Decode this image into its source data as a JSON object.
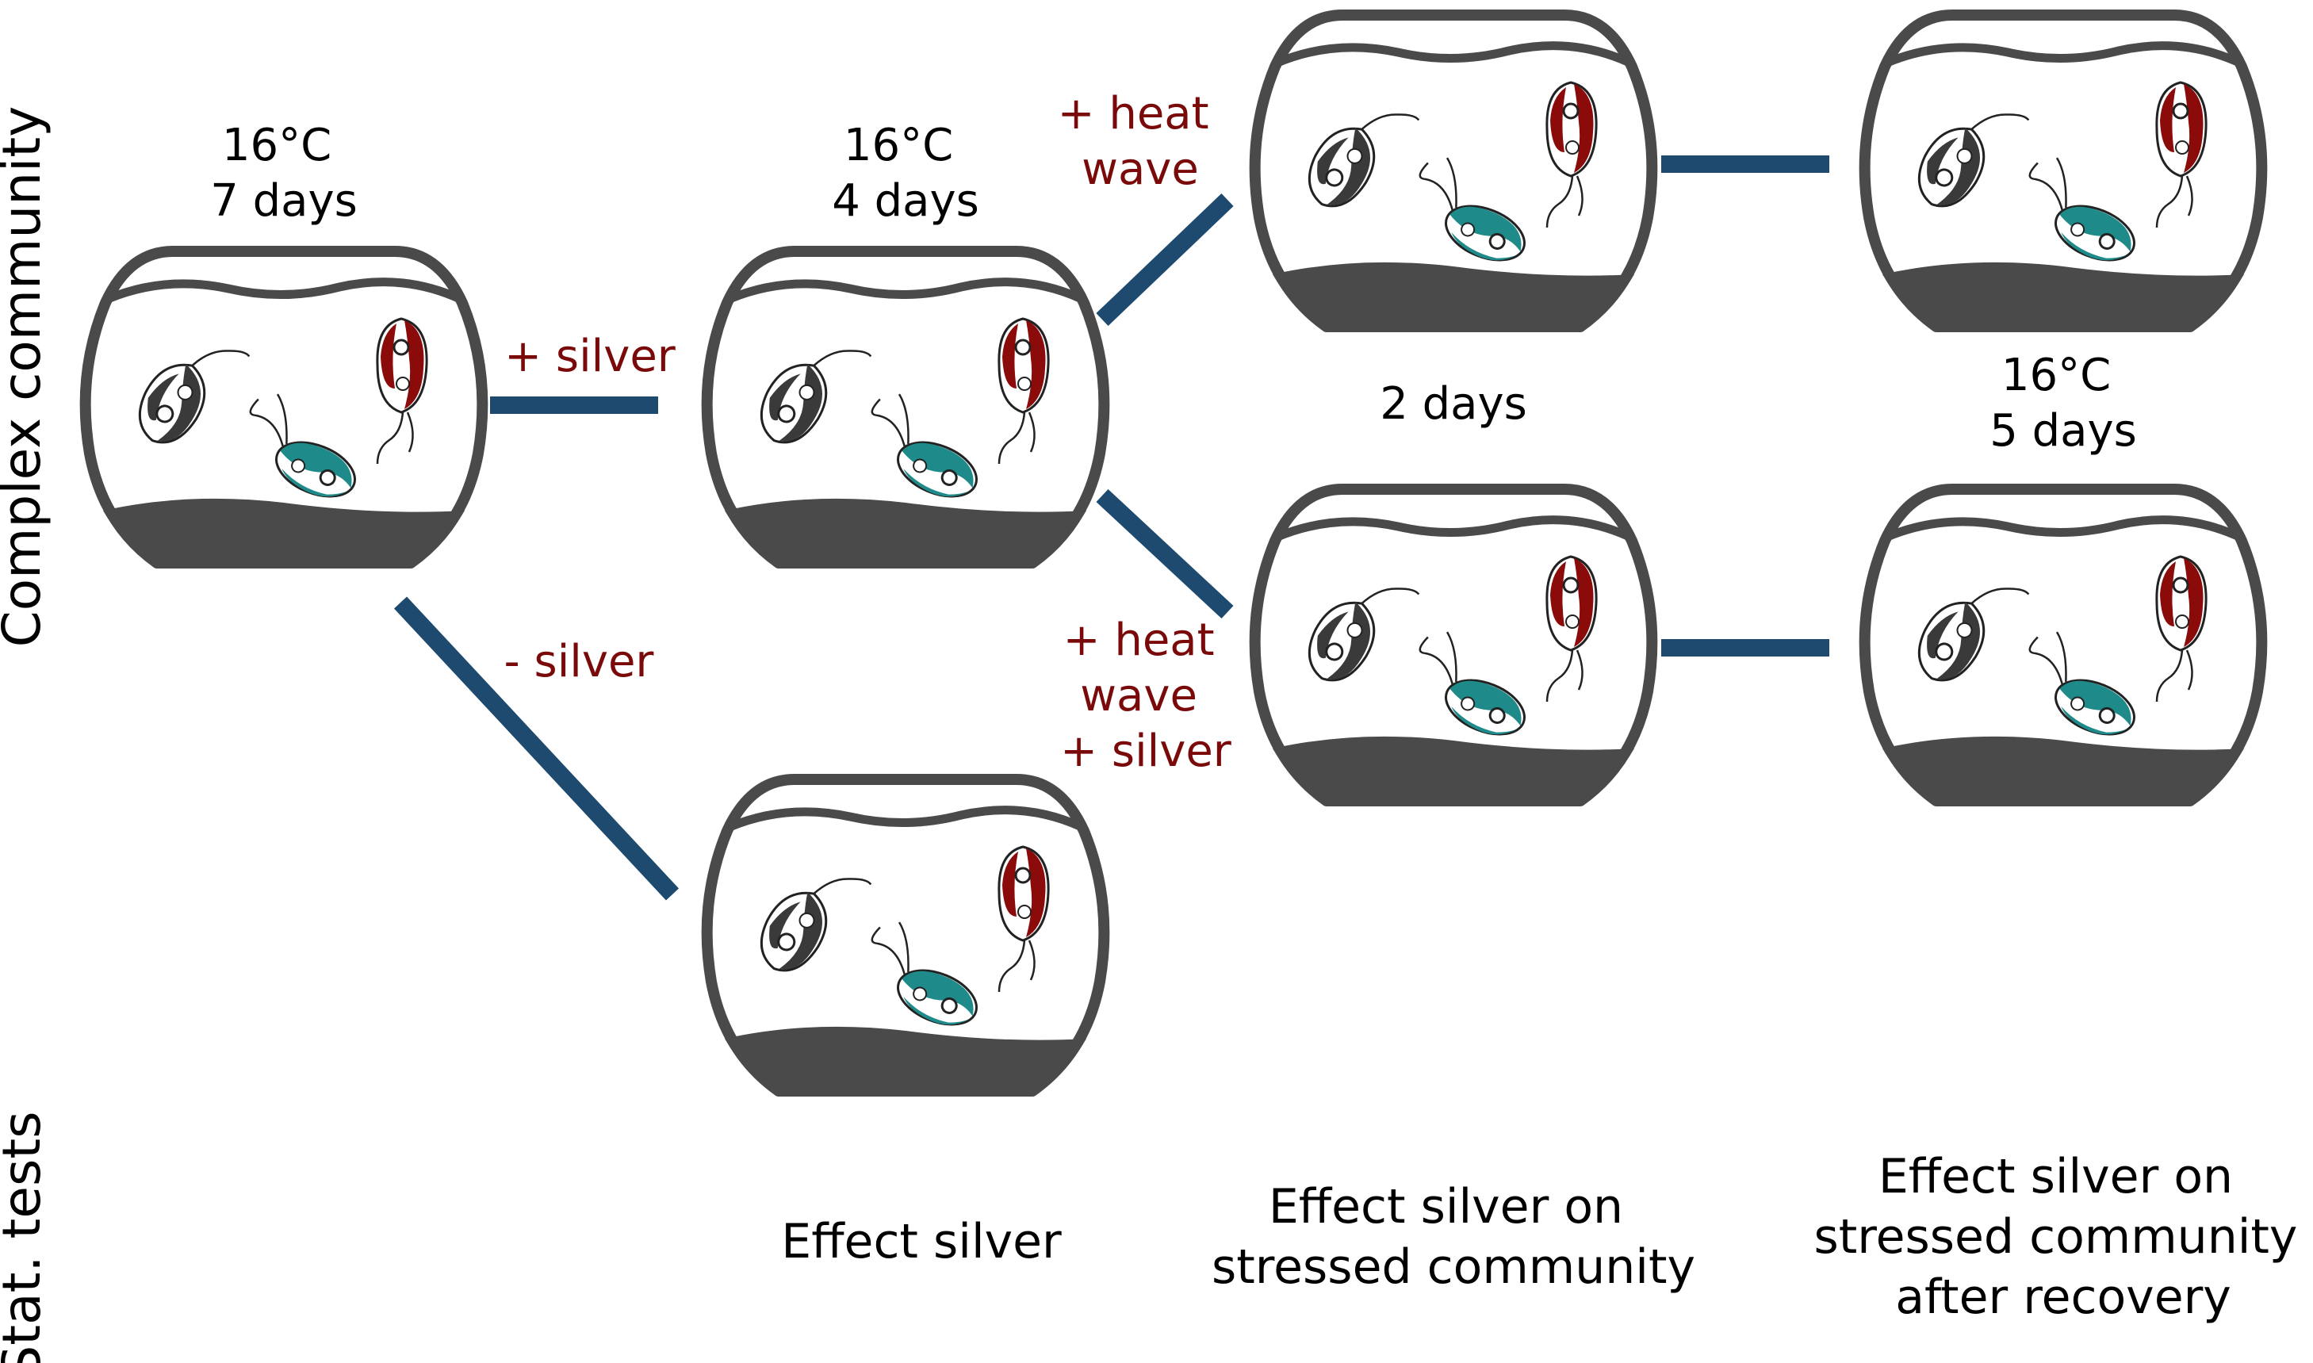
{
  "row_labels": {
    "top": "Complex community",
    "bottom": "Stat. tests"
  },
  "conditions": {
    "start": [
      "16°C",
      "7 days"
    ],
    "mid": [
      "16°C",
      "4 days"
    ],
    "wave_duration": "2 days",
    "recovery": [
      "16°C",
      "5 days"
    ]
  },
  "treatments": {
    "plus_silver": "+ silver",
    "minus_silver": "- silver",
    "heat_wave": [
      "+ heat",
      "wave"
    ],
    "heat_wave_silver": [
      "+ heat",
      "wave",
      "+ silver"
    ]
  },
  "stat_tests": {
    "effect_silver": "Effect silver",
    "stressed": [
      "Effect silver on",
      "stressed community"
    ],
    "recovery": [
      "Effect silver on",
      "stressed community",
      "after recovery"
    ]
  },
  "colors": {
    "bowl": "#4a4a4a",
    "connector": "#1d4a6e",
    "treatment_text": "#7a0a0a",
    "ciliate_dark": "#3a3a3a",
    "ciliate_teal": "#1f8a8a",
    "ciliate_red": "#8b0a0a"
  }
}
